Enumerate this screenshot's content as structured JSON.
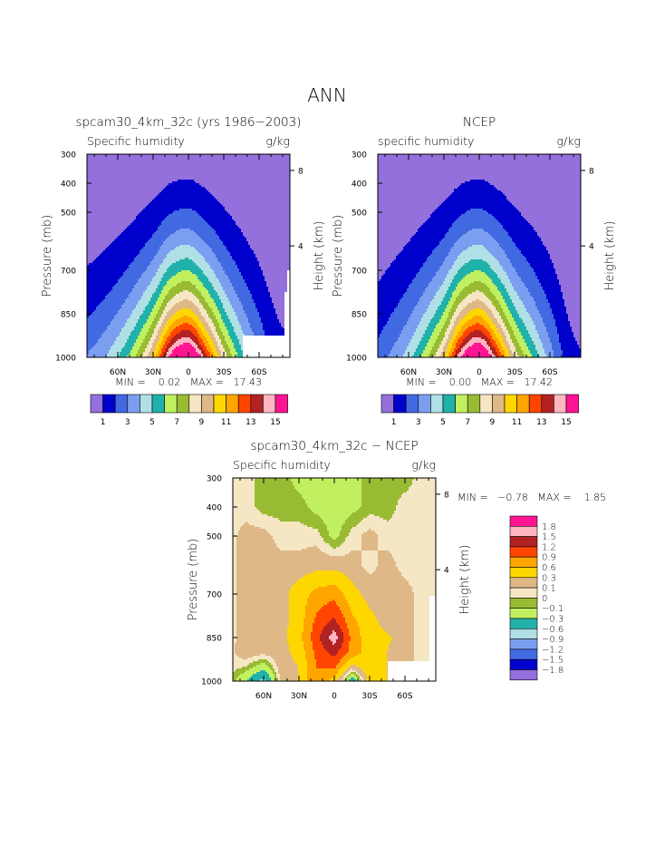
{
  "page_title": "ANN",
  "chart_data": [
    {
      "type": "heatmap",
      "subtype": "filled-contour",
      "title": "spcam30_4km_32c (yrs 1986−2003)",
      "left_label": "Specific humidity",
      "units": "g/kg",
      "ylabel": "Pressure (mb)",
      "y2label": "Height (km)",
      "stats": "MIN =    0.02   MAX =   17.43",
      "min": 0.02,
      "max": 17.43,
      "xlim_lat": [
        86,
        -86
      ],
      "ylim_mb": [
        300,
        1000
      ],
      "x_ticks": [
        {
          "lat": 60,
          "label": "60N"
        },
        {
          "lat": 30,
          "label": "30N"
        },
        {
          "lat": 0,
          "label": "0"
        },
        {
          "lat": -30,
          "label": "30S"
        },
        {
          "lat": -60,
          "label": "60S"
        }
      ],
      "y_ticks": [
        300,
        400,
        500,
        700,
        850,
        1000
      ],
      "y_tick_labels": [
        "300",
        "400",
        "500",
        "700",
        "850",
        "1000"
      ],
      "height_ticks": [
        {
          "km": 8,
          "label": "8",
          "p_mb": 356
        },
        {
          "km": 4,
          "label": "4",
          "p_mb": 616
        }
      ],
      "field_model": "q = surface_q(lat) * (p/1000)^exponent",
      "lat_nodes": [
        90,
        75,
        60,
        45,
        30,
        15,
        0,
        -15,
        -30,
        -45,
        -60,
        -75,
        -90
      ],
      "surface_q": [
        3.0,
        3.7,
        5.0,
        7.1,
        10.4,
        15.6,
        17.4,
        13.4,
        8.8,
        5.5,
        3.2,
        1.6,
        1.3
      ],
      "exponent": 3,
      "missing_region": "near-surface south of 50S",
      "levels": [
        1,
        2,
        3,
        4,
        5,
        6,
        7,
        8,
        9,
        10,
        11,
        12,
        13,
        14,
        15
      ],
      "colorbar_labels": [
        "1",
        "3",
        "5",
        "7",
        "9",
        "11",
        "13",
        "15"
      ]
    },
    {
      "type": "heatmap",
      "subtype": "filled-contour",
      "title": "NCEP",
      "left_label": "specific humidity",
      "units": "g/kg",
      "ylabel": "Pressure (mb)",
      "y2label": "Height (km)",
      "stats": "MIN =    0.00   MAX =   17.42",
      "min": 0.0,
      "max": 17.42,
      "xlim_lat": [
        86,
        -86
      ],
      "ylim_mb": [
        300,
        1000
      ],
      "x_ticks": [
        {
          "lat": 60,
          "label": "60N"
        },
        {
          "lat": 30,
          "label": "30N"
        },
        {
          "lat": 0,
          "label": "0"
        },
        {
          "lat": -30,
          "label": "30S"
        },
        {
          "lat": -60,
          "label": "60S"
        }
      ],
      "y_ticks": [
        300,
        400,
        500,
        700,
        850,
        1000
      ],
      "y_tick_labels": [
        "300",
        "400",
        "500",
        "700",
        "850",
        "1000"
      ],
      "height_ticks": [
        {
          "km": 8,
          "label": "8",
          "p_mb": 356
        },
        {
          "km": 4,
          "label": "4",
          "p_mb": 616
        }
      ],
      "field_model": "q = surface_q(lat) * (p/1000)^exponent",
      "lat_nodes": [
        90,
        75,
        60,
        45,
        30,
        15,
        0,
        -15,
        -30,
        -45,
        -60,
        -75,
        -90
      ],
      "surface_q": [
        2.3,
        3.2,
        4.6,
        6.8,
        10.0,
        15.2,
        17.4,
        13.6,
        8.9,
        6.0,
        3.6,
        1.6,
        1.0
      ],
      "exponent": 3,
      "levels": [
        1,
        2,
        3,
        4,
        5,
        6,
        7,
        8,
        9,
        10,
        11,
        12,
        13,
        14,
        15
      ],
      "colorbar_labels": [
        "1",
        "3",
        "5",
        "7",
        "9",
        "11",
        "13",
        "15"
      ]
    },
    {
      "type": "heatmap",
      "subtype": "filled-contour",
      "title": "spcam30_4km_32c − NCEP",
      "left_label": "Specific humidity",
      "units": "g/kg",
      "ylabel": "Pressure (mb)",
      "y2label": "Height (km)",
      "stats": "MIN =   −0.78   MAX =    1.85",
      "min": -0.78,
      "max": 1.85,
      "xlim_lat": [
        86,
        -86
      ],
      "ylim_mb": [
        300,
        1000
      ],
      "x_ticks": [
        {
          "lat": 60,
          "label": "60N"
        },
        {
          "lat": 30,
          "label": "30N"
        },
        {
          "lat": 0,
          "label": "0"
        },
        {
          "lat": -30,
          "label": "30S"
        },
        {
          "lat": -60,
          "label": "60S"
        }
      ],
      "y_ticks": [
        300,
        400,
        500,
        700,
        850,
        1000
      ],
      "y_tick_labels": [
        "300",
        "400",
        "500",
        "700",
        "850",
        "1000"
      ],
      "height_ticks": [
        {
          "km": 8,
          "label": "8",
          "p_mb": 356
        },
        {
          "km": 4,
          "label": "4",
          "p_mb": 616
        }
      ],
      "lat_nodes": [
        90,
        75,
        60,
        45,
        30,
        15,
        0,
        -15,
        -30,
        -45,
        -60,
        -75,
        -90
      ],
      "p_nodes": [
        300,
        400,
        500,
        600,
        700,
        800,
        850,
        900,
        950,
        1000
      ],
      "grid_values": [
        [
          0.05,
          0.05,
          -0.05,
          -0.05,
          -0.15,
          -0.2,
          -0.2,
          -0.15,
          -0.05,
          -0.05,
          -0.05,
          0.05,
          0.05
        ],
        [
          0.05,
          0.05,
          -0.05,
          -0.05,
          -0.05,
          -0.15,
          -0.2,
          -0.15,
          -0.05,
          -0.05,
          0.05,
          0.05,
          0.05
        ],
        [
          0.05,
          0.15,
          0.15,
          0.05,
          0.05,
          0.05,
          -0.15,
          0.05,
          0.15,
          0.05,
          0.05,
          0.05,
          0.05
        ],
        [
          0.05,
          0.15,
          0.15,
          0.15,
          0.15,
          0.2,
          0.2,
          0.15,
          0.05,
          0.15,
          0.05,
          0.05,
          0.05
        ],
        [
          0.05,
          0.15,
          0.2,
          0.2,
          0.45,
          0.7,
          0.8,
          0.4,
          0.2,
          0.2,
          0.15,
          0.05,
          0.05
        ],
        [
          0.05,
          0.15,
          0.2,
          0.2,
          0.45,
          1.0,
          1.3,
          0.7,
          0.4,
          0.2,
          0.15,
          0.05,
          0.05
        ],
        [
          0.05,
          0.15,
          0.2,
          0.2,
          0.5,
          1.1,
          1.7,
          0.8,
          0.4,
          0.35,
          0.15,
          0.05,
          0.05
        ],
        [
          0.05,
          0.2,
          0.15,
          0.2,
          0.4,
          1.0,
          1.3,
          0.8,
          0.45,
          0.3,
          0.15,
          0.05,
          0.05
        ],
        [
          0.05,
          0.0,
          -0.2,
          0.2,
          0.3,
          0.9,
          1.0,
          0.2,
          0.5,
          0.3,
          0.15,
          0.05,
          0.05
        ],
        [
          0.05,
          -0.3,
          -0.7,
          0.15,
          0.3,
          0.9,
          0.4,
          -0.5,
          0.4,
          0.3,
          0.15,
          0.05,
          0.05
        ]
      ],
      "levels": [
        -1.8,
        -1.5,
        -1.2,
        -0.9,
        -0.6,
        -0.3,
        -0.1,
        0,
        0.1,
        0.3,
        0.6,
        0.9,
        1.2,
        1.5,
        1.8
      ],
      "colorbar_labels": [
        "1.8",
        "1.5",
        "1.2",
        "0.9",
        "0.6",
        "0.3",
        "0.1",
        "0",
        "−0.1",
        "−0.3",
        "−0.6",
        "−0.9",
        "−1.2",
        "−1.5",
        "−1.8"
      ]
    }
  ],
  "palette": [
    "#9370DB",
    "#0000CD",
    "#4169E1",
    "#7B9EF0",
    "#B0E0E6",
    "#20B2AA",
    "#C0F060",
    "#99BB33",
    "#F5E6C4",
    "#DEB887",
    "#FFD700",
    "#FFA500",
    "#FF4500",
    "#B22222",
    "#FFB6C1",
    "#FF1493"
  ],
  "missing_color": "#FFFFFF"
}
